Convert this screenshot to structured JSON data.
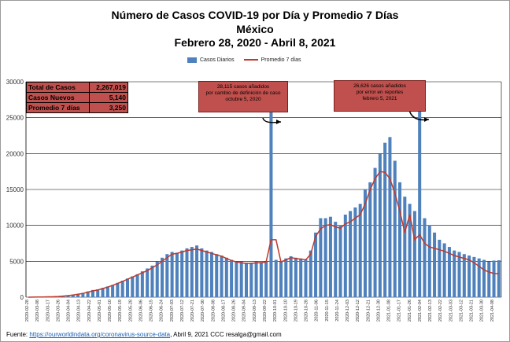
{
  "header": {
    "title_line1": "Número de  Casos  COVID-19 por Día y Promedio 7 Días",
    "title_line2": "México",
    "title_line3": "Febrero 28, 2020  - Abril 8, 2021"
  },
  "legend": {
    "bars": "Casos Diarios",
    "line": "Promedio 7 días"
  },
  "stats": [
    {
      "label": "Total de Casos",
      "value": "2,267,019"
    },
    {
      "label": "Casos Nuevos",
      "value": "5,140"
    },
    {
      "label": "Promedio 7 días",
      "value": "3,250"
    }
  ],
  "annotations": {
    "note1": [
      "28,115 casos  añadidos",
      "por cambio de definición de caso",
      "octubre  5, 2020"
    ],
    "note2": [
      "26,626 casos  añadidos",
      "por error en reportes",
      "febrero  5, 2021"
    ]
  },
  "footer": {
    "prefix": "Fuente:  ",
    "link": "https://ourworldindata.org/coronavirus-source-data",
    "suffix": ", Abril 9, 2021   CCC   resalga@gmail.com"
  },
  "colors": {
    "bars": "#4f81bd",
    "line": "#c0392b",
    "stats_bg": "#c0504d"
  },
  "chart_data": {
    "type": "bar",
    "ylim": [
      0,
      30000
    ],
    "yticks": [
      "0",
      "5000",
      "10000",
      "15000",
      "20000",
      "25000",
      "30000"
    ],
    "x_tick_labels": [
      "2020-02-28",
      "2020-03-08",
      "2020-03-17",
      "2020-03-26",
      "2020-04-04",
      "2020-04-13",
      "2020-04-22",
      "2020-05-01",
      "2020-05-10",
      "2020-05-19",
      "2020-05-28",
      "2020-06-06",
      "2020-06-15",
      "2020-06-24",
      "2020-07-03",
      "2020-07-12",
      "2020-07-21",
      "2020-07-30",
      "2020-08-08",
      "2020-08-17",
      "2020-08-26",
      "2020-09-04",
      "2020-09-13",
      "2020-09-22",
      "2020-10-01",
      "2020-10-10",
      "2020-10-19",
      "2020-10-28",
      "2020-11-06",
      "2020-11-15",
      "2020-11-24",
      "2020-12-03",
      "2020-12-12",
      "2020-12-21",
      "2020-12-30",
      "2021-01-08",
      "2021-01-17",
      "2021-01-26",
      "2021-02-04",
      "2021-02-13",
      "2021-02-22",
      "2021-03-03",
      "2021-03-12",
      "2021-03-21",
      "2021-03-30",
      "2021-04-08"
    ],
    "series": [
      {
        "name": "Casos Diarios",
        "kind": "bar",
        "values": [
          10,
          20,
          30,
          40,
          60,
          80,
          120,
          180,
          250,
          350,
          450,
          600,
          800,
          1000,
          1100,
          1300,
          1500,
          1700,
          2000,
          2300,
          2600,
          2900,
          3200,
          3600,
          4000,
          4400,
          5000,
          5500,
          6000,
          6300,
          6200,
          6500,
          6800,
          7000,
          7200,
          6800,
          6500,
          6300,
          6000,
          5800,
          5500,
          5200,
          5000,
          5000,
          4800,
          4800,
          5000,
          4900,
          5000,
          28115,
          5200,
          5000,
          5400,
          5700,
          5500,
          5400,
          5300,
          6500,
          9000,
          11000,
          11000,
          11200,
          10500,
          10000,
          11500,
          12000,
          12500,
          13000,
          15000,
          16000,
          18000,
          20000,
          21500,
          22300,
          19000,
          16000,
          14000,
          13000,
          12000,
          26626,
          11000,
          10000,
          9000,
          8000,
          7500,
          7000,
          6500,
          6300,
          6000,
          5800,
          5600,
          5400,
          5200,
          5000,
          5100,
          5140
        ],
        "x_start": "2020-02-28",
        "x_step_days": 4.2
      },
      {
        "name": "Promedio 7 días",
        "kind": "line",
        "values": [
          5,
          10,
          20,
          30,
          50,
          70,
          100,
          150,
          220,
          300,
          400,
          530,
          700,
          880,
          1000,
          1200,
          1400,
          1650,
          1900,
          2200,
          2500,
          2800,
          3100,
          3400,
          3700,
          4100,
          4500,
          5000,
          5500,
          6000,
          6100,
          6300,
          6500,
          6600,
          6700,
          6500,
          6300,
          6100,
          5900,
          5700,
          5400,
          5100,
          4900,
          4800,
          4700,
          4700,
          4800,
          4800,
          4900,
          8000,
          8000,
          4900,
          5200,
          5500,
          5400,
          5300,
          5200,
          6000,
          8500,
          9500,
          10000,
          10100,
          9800,
          9600,
          10200,
          10500,
          11000,
          11500,
          13000,
          15000,
          16500,
          17500,
          17400,
          16500,
          14500,
          12000,
          9000,
          11500,
          8000,
          8700,
          7500,
          7000,
          6800,
          6600,
          6400,
          6100,
          5800,
          5600,
          5400,
          5200,
          4800,
          4300,
          3800,
          3500,
          3300,
          3250
        ],
        "x_start": "2020-02-28",
        "x_step_days": 4.2
      }
    ]
  }
}
